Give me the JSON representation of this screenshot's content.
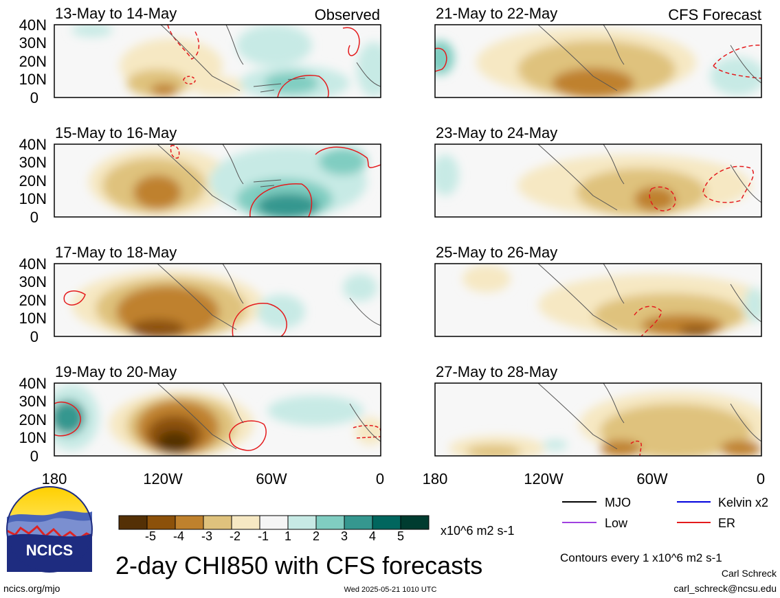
{
  "header": {
    "left_tag": "Observed",
    "right_tag": "CFS Forecast"
  },
  "chart_data": {
    "type": "heatmap",
    "title": "2-day CHI850 with CFS forecasts",
    "variable": "CHI850",
    "units": "x10^6 m2 s-1",
    "lat_ticks": [
      "40N",
      "30N",
      "20N",
      "10N",
      "0"
    ],
    "lon_ticks": [
      "180",
      "120W",
      "60W",
      "0"
    ],
    "lat_range": [
      0,
      40
    ],
    "lon_range": [
      -180,
      0
    ],
    "panels": [
      {
        "period": "13-May to 14-May",
        "type": "Observed",
        "column": "left",
        "row": 0
      },
      {
        "period": "15-May to 16-May",
        "type": "Observed",
        "column": "left",
        "row": 1
      },
      {
        "period": "17-May to 18-May",
        "type": "CFS Forecast",
        "column": "left",
        "row": 2
      },
      {
        "period": "19-May to 20-May",
        "type": "CFS Forecast",
        "column": "left",
        "row": 3
      },
      {
        "period": "21-May to 22-May",
        "type": "CFS Forecast",
        "column": "right",
        "row": 0
      },
      {
        "period": "23-May to 24-May",
        "type": "CFS Forecast",
        "column": "right",
        "row": 1
      },
      {
        "period": "25-May to 26-May",
        "type": "CFS Forecast",
        "column": "right",
        "row": 2
      },
      {
        "period": "27-May to 28-May",
        "type": "CFS Forecast",
        "column": "right",
        "row": 3
      }
    ],
    "colorbar": {
      "labels": [
        "-5",
        "-4",
        "-3",
        "-2",
        "-1",
        "1",
        "2",
        "3",
        "4",
        "5"
      ],
      "colors": [
        "#543005",
        "#8c510a",
        "#bf812d",
        "#dfc27d",
        "#f6e8c3",
        "#f5f5f5",
        "#c7eae5",
        "#80cdc1",
        "#35978f",
        "#01665e",
        "#003c30"
      ]
    },
    "legend": [
      {
        "label": "MJO",
        "color": "#000000"
      },
      {
        "label": "Kelvin x2",
        "color": "#0000dd"
      },
      {
        "label": "Low",
        "color": "#a040e0"
      },
      {
        "label": "ER",
        "color": "#e41a1c"
      }
    ],
    "contour_note": "Contours every 1 x10^6 m2 s-1"
  },
  "footer": {
    "logo_text": "NCICS",
    "url": "ncics.org/mjo",
    "timestamp": "Wed 2025-05-21 1010 UTC",
    "author": "Carl Schreck",
    "email": "carl_schreck@ncsu.edu"
  }
}
